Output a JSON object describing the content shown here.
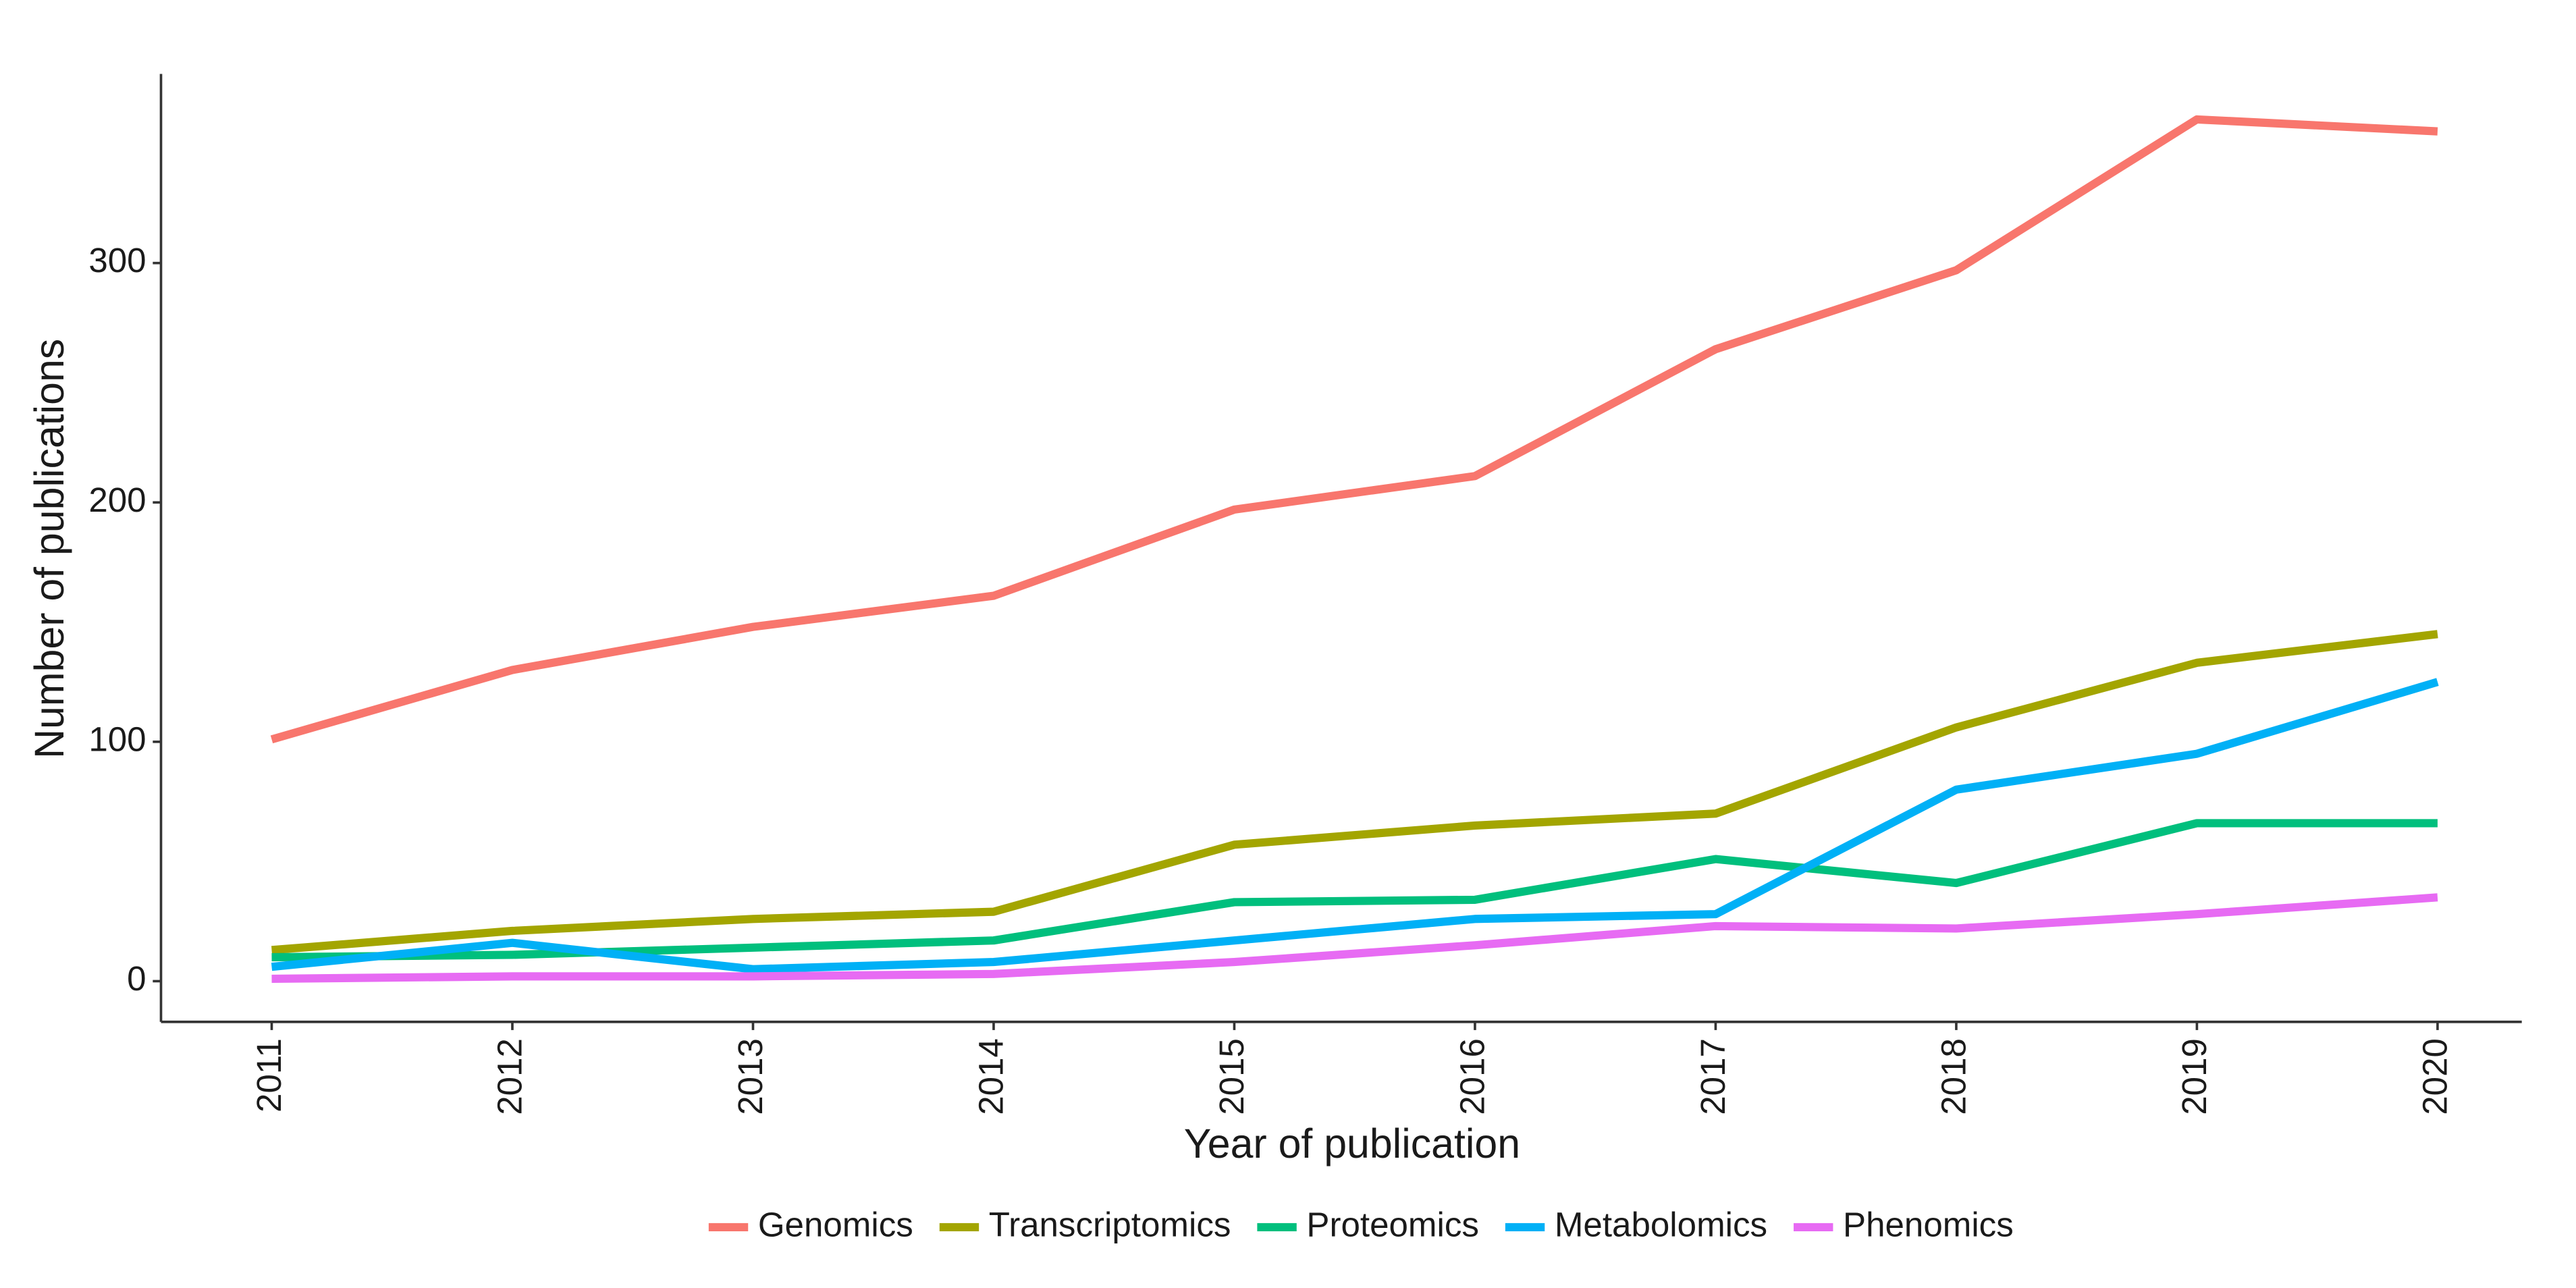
{
  "chart_data": {
    "type": "line",
    "x_label": "Year of publication",
    "y_label": "Number of publications",
    "x": [
      2011,
      2012,
      2013,
      2014,
      2015,
      2016,
      2017,
      2018,
      2019,
      2020
    ],
    "xlim": [
      2010.54,
      2020.35
    ],
    "xticks": [
      2011,
      2012,
      2013,
      2014,
      2015,
      2016,
      2017,
      2018,
      2019,
      2020
    ],
    "ylim": [
      -17,
      379
    ],
    "yticks": [
      0,
      100,
      200,
      300
    ],
    "grid": false,
    "legend": "bottom",
    "series": [
      {
        "name": "Genomics",
        "color": "#F8766D",
        "values": [
          101,
          130,
          148,
          161,
          197,
          211,
          264,
          297,
          360,
          355
        ]
      },
      {
        "name": "Transcriptomics",
        "color": "#A3A500",
        "values": [
          13,
          21,
          26,
          29,
          57,
          65,
          70,
          106,
          133,
          145
        ]
      },
      {
        "name": "Proteomics",
        "color": "#00BF7D",
        "values": [
          10,
          11,
          14,
          17,
          33,
          34,
          51,
          41,
          66,
          66
        ]
      },
      {
        "name": "Metabolomics",
        "color": "#00B0F6",
        "values": [
          6,
          16,
          5,
          8,
          17,
          26,
          28,
          80,
          95,
          125
        ]
      },
      {
        "name": "Phenomics",
        "color": "#E76BF3",
        "values": [
          1,
          2,
          2,
          3,
          8,
          15,
          23,
          22,
          28,
          35
        ]
      }
    ]
  }
}
